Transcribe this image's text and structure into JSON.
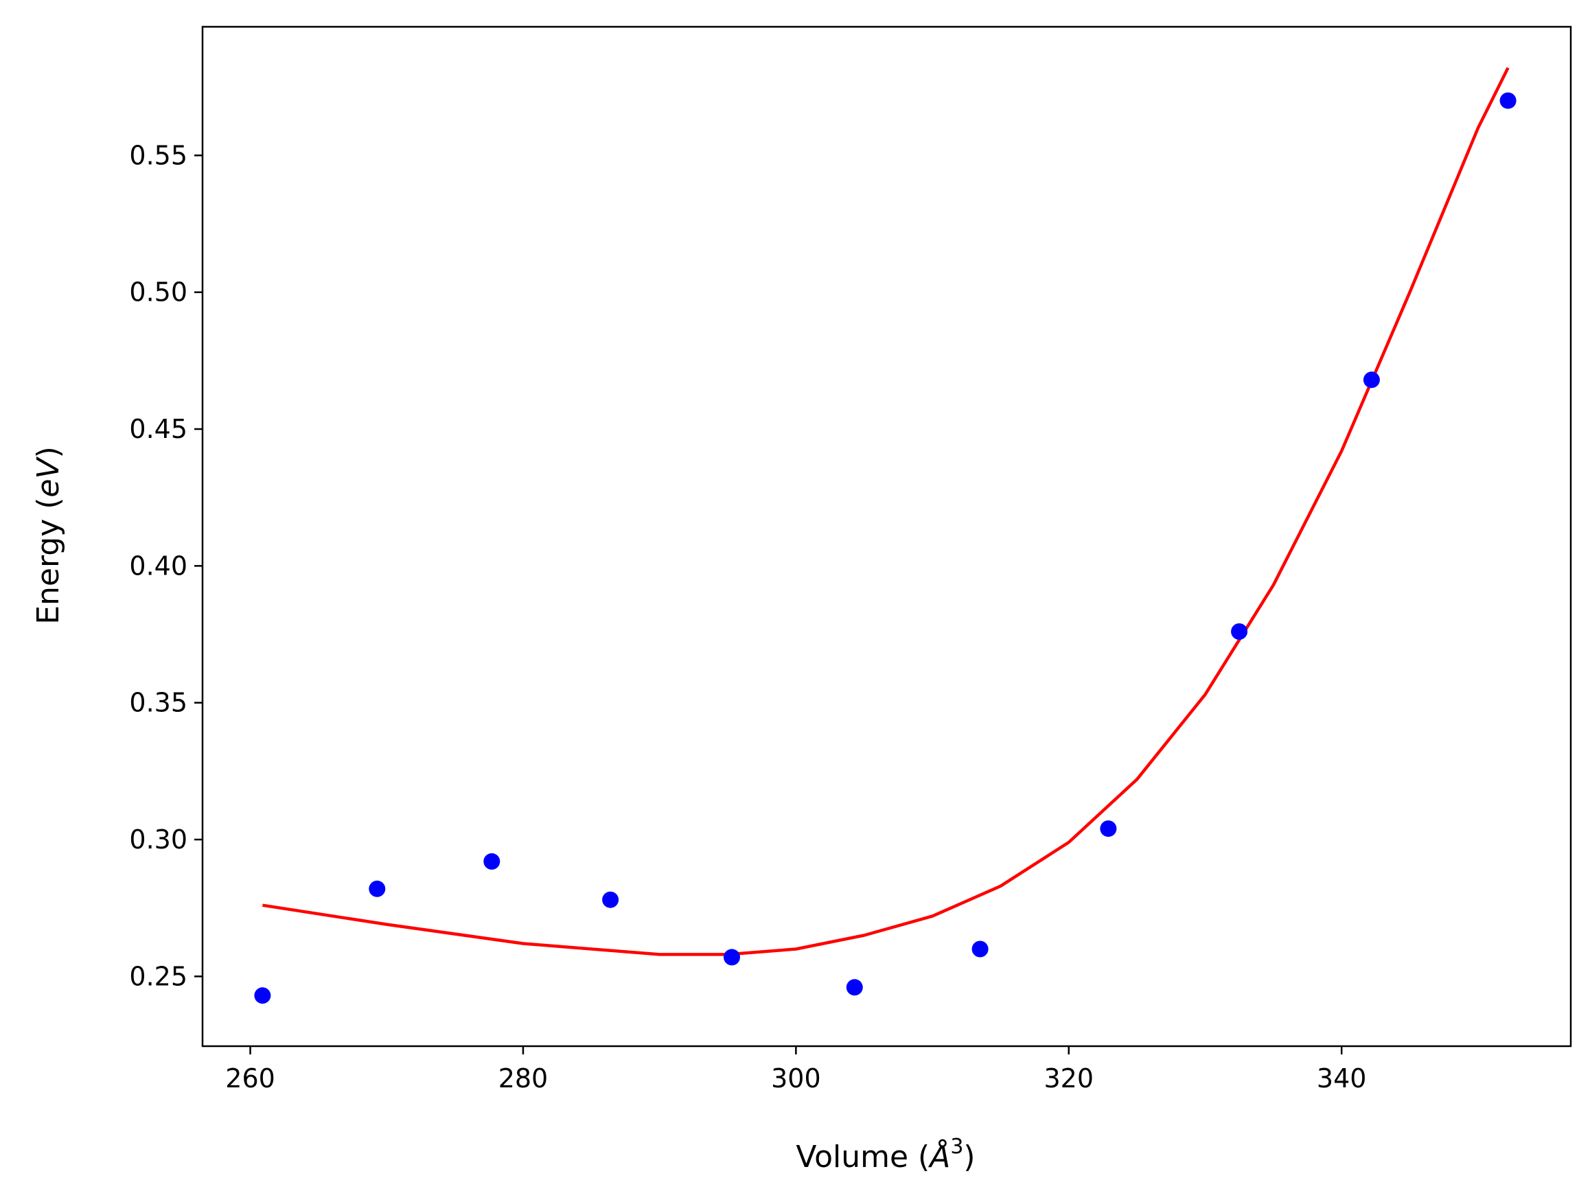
{
  "chart_data": {
    "type": "scatter",
    "xlabel_main": "Volume (",
    "xlabel_unit": "Å",
    "xlabel_exp": "3",
    "xlabel_close": ")",
    "ylabel_main": "Energy (",
    "ylabel_unit": "eV",
    "ylabel_close": ")",
    "xlim": [
      256.5,
      356.8
    ],
    "ylim": [
      0.2245,
      0.597
    ],
    "xticks": [
      260,
      280,
      300,
      320,
      340
    ],
    "xtick_labels": [
      "260",
      "280",
      "300",
      "320",
      "340"
    ],
    "yticks": [
      0.25,
      0.3,
      0.35,
      0.4,
      0.45,
      0.5,
      0.55
    ],
    "ytick_labels": [
      "0.25",
      "0.30",
      "0.35",
      "0.40",
      "0.45",
      "0.50",
      "0.55"
    ],
    "grid": false,
    "series": [
      {
        "kind": "scatter",
        "color": "#0000ff",
        "x": [
          260.9,
          269.3,
          277.7,
          286.4,
          295.3,
          304.3,
          313.5,
          322.9,
          332.5,
          342.2,
          352.2
        ],
        "y": [
          0.243,
          0.282,
          0.292,
          0.278,
          0.257,
          0.246,
          0.26,
          0.304,
          0.376,
          0.468,
          0.57
        ]
      },
      {
        "kind": "line",
        "color": "#ff0000",
        "x": [
          260.9,
          270,
          280,
          290,
          295,
          300,
          305,
          310,
          315,
          320,
          325,
          330,
          335,
          340,
          345,
          350,
          352.2
        ],
        "y": [
          0.276,
          0.269,
          0.262,
          0.258,
          0.258,
          0.26,
          0.265,
          0.272,
          0.283,
          0.299,
          0.322,
          0.353,
          0.393,
          0.442,
          0.5,
          0.56,
          0.582
        ]
      }
    ]
  }
}
